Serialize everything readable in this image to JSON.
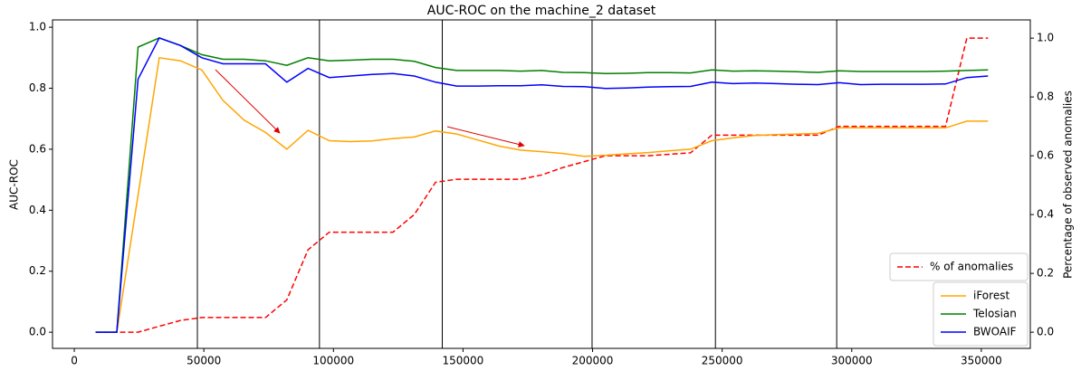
{
  "chart_data": {
    "type": "line",
    "title": "AUC-ROC on the machine_2 dataset",
    "ylabel": "AUC-ROC",
    "y2label": "Percentage of observed anomalies",
    "x": [
      8200,
      16400,
      24600,
      32800,
      41000,
      49200,
      57400,
      65600,
      73800,
      82000,
      90200,
      98400,
      106600,
      114800,
      123000,
      131200,
      139400,
      147600,
      155800,
      164000,
      172200,
      180400,
      188600,
      196800,
      205000,
      213200,
      221400,
      229600,
      237800,
      246000,
      254200,
      262400,
      270600,
      278800,
      287000,
      295200,
      303400,
      311600,
      319800,
      328000,
      336200,
      344400,
      352600
    ],
    "series": [
      {
        "name": "% of anomalies",
        "color": "#ff0000",
        "dashed": true,
        "axis": "y2",
        "values": [
          0,
          0,
          0,
          0.02,
          0.04,
          0.05,
          0.05,
          0.05,
          0.05,
          0.11,
          0.28,
          0.34,
          0.34,
          0.34,
          0.34,
          0.4,
          0.51,
          0.52,
          0.52,
          0.52,
          0.52,
          0.535,
          0.56,
          0.58,
          0.6,
          0.6,
          0.6,
          0.605,
          0.61,
          0.67,
          0.67,
          0.67,
          0.67,
          0.67,
          0.67,
          0.7,
          0.7,
          0.7,
          0.7,
          0.7,
          0.7,
          1.0,
          1.0
        ]
      },
      {
        "name": "iForest",
        "color": "#ffa500",
        "values": [
          0,
          0,
          0.45,
          0.9,
          0.89,
          0.86,
          0.76,
          0.695,
          0.655,
          0.6,
          0.662,
          0.628,
          0.625,
          0.627,
          0.635,
          0.64,
          0.66,
          0.65,
          0.63,
          0.61,
          0.597,
          0.592,
          0.586,
          0.577,
          0.58,
          0.585,
          0.589,
          0.595,
          0.6,
          0.628,
          0.637,
          0.645,
          0.648,
          0.65,
          0.652,
          0.67,
          0.67,
          0.67,
          0.67,
          0.67,
          0.67,
          0.692,
          0.692
        ]
      },
      {
        "name": "Telosian",
        "color": "#008000",
        "values": [
          0,
          0,
          0.935,
          0.965,
          0.94,
          0.91,
          0.895,
          0.895,
          0.89,
          0.875,
          0.9,
          0.89,
          0.892,
          0.895,
          0.895,
          0.888,
          0.868,
          0.858,
          0.858,
          0.858,
          0.856,
          0.858,
          0.852,
          0.851,
          0.848,
          0.849,
          0.851,
          0.851,
          0.85,
          0.86,
          0.856,
          0.857,
          0.856,
          0.854,
          0.852,
          0.857,
          0.855,
          0.855,
          0.855,
          0.855,
          0.856,
          0.858,
          0.86
        ]
      },
      {
        "name": "BWOAIF",
        "color": "#0000ff",
        "values": [
          0,
          0,
          0.83,
          0.965,
          0.94,
          0.9,
          0.88,
          0.88,
          0.88,
          0.82,
          0.865,
          0.835,
          0.84,
          0.845,
          0.848,
          0.84,
          0.82,
          0.807,
          0.807,
          0.808,
          0.808,
          0.811,
          0.806,
          0.805,
          0.799,
          0.801,
          0.804,
          0.805,
          0.806,
          0.82,
          0.815,
          0.817,
          0.815,
          0.813,
          0.812,
          0.818,
          0.812,
          0.813,
          0.813,
          0.813,
          0.814,
          0.835,
          0.84
        ]
      }
    ],
    "vlines": [
      47500,
      94600,
      142000,
      199800,
      247400,
      294200
    ],
    "vline_color": "#000000",
    "xlim": [
      -8400,
      368900
    ],
    "xticks": [
      0,
      50000,
      100000,
      150000,
      200000,
      250000,
      300000,
      350000
    ],
    "ylim": [
      -0.053,
      1.024
    ],
    "yticks": [
      {
        "value": 0,
        "label": "0.0"
      },
      0.2,
      0.4,
      0.6,
      0.8,
      {
        "value": 1,
        "label": "1.0"
      }
    ],
    "y2lim": [
      -0.055,
      1.062
    ],
    "y2ticks": [
      {
        "value": 0,
        "label": "0.0"
      },
      0.2,
      0.4,
      0.6,
      0.8,
      {
        "value": 1,
        "label": "1.0"
      }
    ],
    "legend": "lower right",
    "grid": false
  }
}
